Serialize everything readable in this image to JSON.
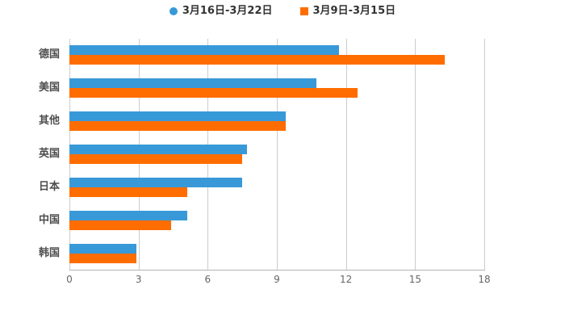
{
  "colors": {
    "background": "#FFFFFF",
    "series1": "#3899D8",
    "series2": "#FF6D00",
    "gridline": "#CCCCCC",
    "axis_line": "#B3B3B3",
    "legend_text": "#333333",
    "category_text": "#4D4D4D",
    "tick_text": "#666666"
  },
  "legend": {
    "items": [
      {
        "label": "3月16日-3月22日",
        "marker": "circle",
        "color": "#3899D8"
      },
      {
        "label": "3月9日-3月15日",
        "marker": "square",
        "color": "#FF6D00"
      }
    ]
  },
  "chart_data": {
    "type": "bar",
    "orientation": "horizontal",
    "title": "",
    "xlabel": "",
    "ylabel": "",
    "categories": [
      "德国",
      "美国",
      "其他",
      "英国",
      "日本",
      "中国",
      "韩国"
    ],
    "series": [
      {
        "name": "3月16日-3月22日",
        "color": "#3899D8",
        "values": [
          11.7,
          10.7,
          9.4,
          7.7,
          7.5,
          5.1,
          2.9
        ]
      },
      {
        "name": "3月9日-3月15日",
        "color": "#FF6D00",
        "values": [
          16.3,
          12.5,
          9.4,
          7.5,
          5.1,
          4.4,
          2.9
        ]
      }
    ],
    "xlim": [
      0,
      18
    ],
    "xticks": [
      0,
      3,
      6,
      9,
      12,
      15,
      18
    ],
    "grid": true,
    "legend_position": "top"
  }
}
